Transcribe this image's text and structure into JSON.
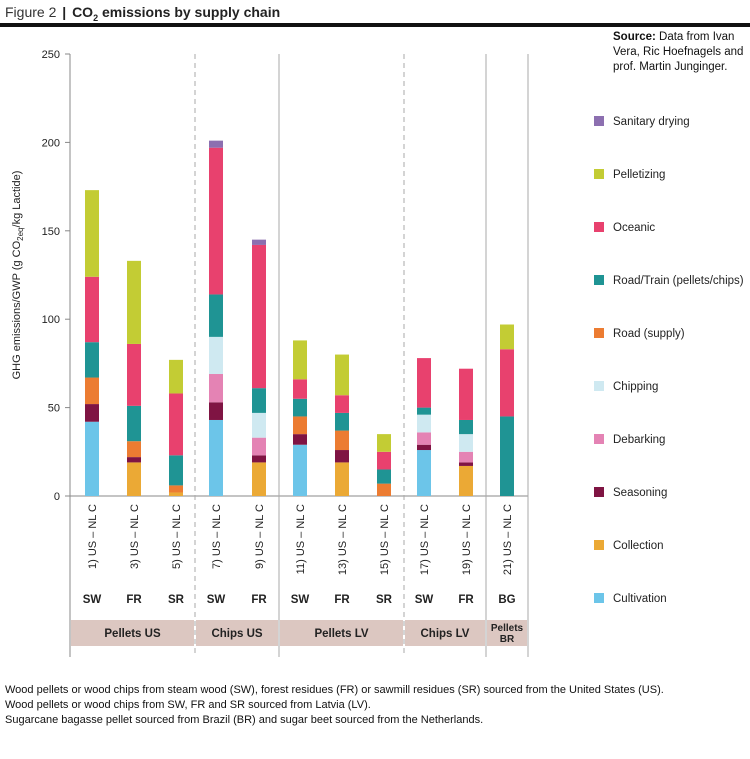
{
  "figure": {
    "label": "Figure 2",
    "separator": "|",
    "title_pre": "CO",
    "title_sub": "2",
    "title_post": " emissions by supply chain"
  },
  "source": {
    "label": "Source:",
    "text": " Data from Ivan Vera, Ric Hoefnagels and prof. Martin Junginger."
  },
  "captions": [
    "Wood pellets or wood chips from steam wood (SW), forest residues (FR) or sawmill residues (SR) sourced from the United States (US).",
    "Wood pellets or wood chips from SW, FR and SR sourced from Latvia (LV).",
    "Sugarcane bagasse pellet sourced from Brazil (BR) and sugar beet sourced from the Netherlands."
  ],
  "chart_data": {
    "type": "bar",
    "stacked": true,
    "ylabel_parts": [
      "GHG emissions/GWP (g CO",
      "2eq",
      "/kg Lactide)"
    ],
    "ylim": [
      0,
      250
    ],
    "yticks": [
      0,
      50,
      100,
      150,
      200,
      250
    ],
    "grid": false,
    "legend_position": "right",
    "categories": [
      "1) US – NL C",
      "3) US – NL C",
      "5) US – NL C",
      "7) US – NL C",
      "9) US – NL C",
      "11) US – NL C",
      "13) US – NL C",
      "15) US – NL C",
      "17) US – NL C",
      "19) US – NL C",
      "21) US – NL C"
    ],
    "feedstock": [
      "SW",
      "FR",
      "SR",
      "SW",
      "FR",
      "SW",
      "FR",
      "SR",
      "SW",
      "FR",
      "BG"
    ],
    "groups": [
      {
        "label": "Pellets US",
        "start": 0,
        "end": 2
      },
      {
        "label": "Chips US",
        "start": 3,
        "end": 4
      },
      {
        "label": "Pellets LV",
        "start": 5,
        "end": 7
      },
      {
        "label": "Chips LV",
        "start": 8,
        "end": 9
      },
      {
        "label": "Pellets BR",
        "start": 10,
        "end": 10
      }
    ],
    "series": [
      {
        "name": "Cultivation",
        "color": "#6cc5e9",
        "values": [
          42,
          0,
          0,
          43,
          0,
          29,
          0,
          0,
          26,
          0,
          0
        ]
      },
      {
        "name": "Collection",
        "color": "#eba935",
        "values": [
          0,
          19,
          2,
          0,
          19,
          0,
          19,
          0,
          0,
          17,
          0
        ]
      },
      {
        "name": "Seasoning",
        "color": "#7f1443",
        "values": [
          10,
          3,
          0,
          10,
          4,
          6,
          7,
          0,
          3,
          2,
          0
        ]
      },
      {
        "name": "Debarking",
        "color": "#e483b4",
        "values": [
          0,
          0,
          0,
          16,
          10,
          0,
          0,
          0,
          7,
          6,
          0
        ]
      },
      {
        "name": "Chipping",
        "color": "#cfe9f1",
        "values": [
          0,
          0,
          0,
          21,
          14,
          0,
          0,
          0,
          10,
          10,
          0
        ]
      },
      {
        "name": "Road (supply)",
        "color": "#ec7c32",
        "values": [
          15,
          9,
          4,
          0,
          0,
          10,
          11,
          7,
          0,
          0,
          0
        ]
      },
      {
        "name": "Road/Train (pellets/chips)",
        "color": "#1f9494",
        "values": [
          20,
          20,
          17,
          24,
          14,
          10,
          10,
          8,
          4,
          8,
          45
        ]
      },
      {
        "name": "Oceanic",
        "color": "#e8416e",
        "values": [
          37,
          35,
          35,
          83,
          81,
          11,
          10,
          10,
          28,
          29,
          38
        ]
      },
      {
        "name": "Pelletizing",
        "color": "#c3cc34",
        "values": [
          49,
          47,
          19,
          0,
          0,
          22,
          23,
          10,
          0,
          0,
          14
        ]
      },
      {
        "name": "Sanitary drying",
        "color": "#8c6fb0",
        "values": [
          0,
          0,
          0,
          4,
          3,
          0,
          0,
          0,
          0,
          0,
          0
        ]
      }
    ]
  }
}
